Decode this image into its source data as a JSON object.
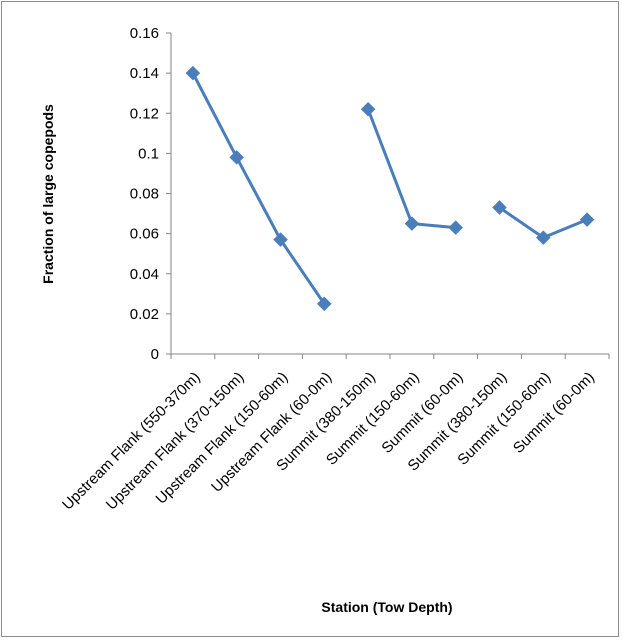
{
  "chart_data": {
    "type": "line",
    "title": "",
    "xlabel": "Station (Tow Depth)",
    "ylabel": "Fraction of large copepods",
    "ylim": [
      0,
      0.16
    ],
    "yticks": [
      "0",
      "0.02",
      "0.04",
      "0.06",
      "0.08",
      "0.1",
      "0.12",
      "0.14",
      "0.16"
    ],
    "categories": [
      "Upstream Flank (550-370m)",
      "Upstream Flank (370-150m)",
      "Upstream Flank (150-60m)",
      "Upstream Flank (60-0m)",
      "Summit (380-150m)",
      "Summit (150-60m)",
      "Summit (60-0m)",
      "Summit (380-150m)",
      "Summit (150-60m)",
      "Summit (60-0m)"
    ],
    "series": [
      {
        "values": [
          0.14,
          0.098,
          0.057,
          0.025,
          null,
          null,
          null,
          null,
          null,
          null
        ]
      },
      {
        "values": [
          null,
          null,
          null,
          null,
          0.122,
          0.065,
          0.063,
          null,
          null,
          null
        ]
      },
      {
        "values": [
          null,
          null,
          null,
          null,
          null,
          null,
          null,
          0.073,
          0.058,
          0.067
        ]
      }
    ],
    "color": "#4a7ebb",
    "grid": false,
    "legend": "none"
  }
}
